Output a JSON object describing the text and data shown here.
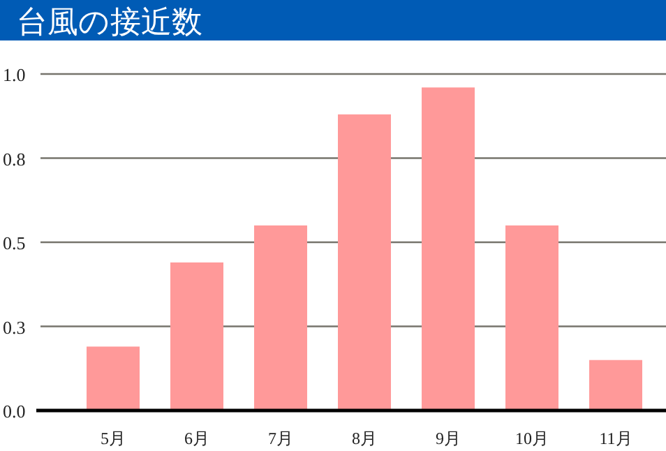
{
  "chart_data": {
    "type": "bar",
    "title": "台風の接近数",
    "categories": [
      "5月",
      "6月",
      "7月",
      "8月",
      "9月",
      "10月",
      "11月"
    ],
    "values": [
      0.19,
      0.44,
      0.55,
      0.88,
      0.96,
      0.55,
      0.15
    ],
    "color": "#ff9999",
    "ylim": [
      0,
      1
    ],
    "yticks": [
      {
        "value": 0,
        "label": "0.0"
      },
      {
        "value": 0.25,
        "label": "0.3"
      },
      {
        "value": 0.5,
        "label": "0.5"
      },
      {
        "value": 0.75,
        "label": "0.8"
      },
      {
        "value": 1,
        "label": "1.0"
      }
    ],
    "grid": "y"
  }
}
